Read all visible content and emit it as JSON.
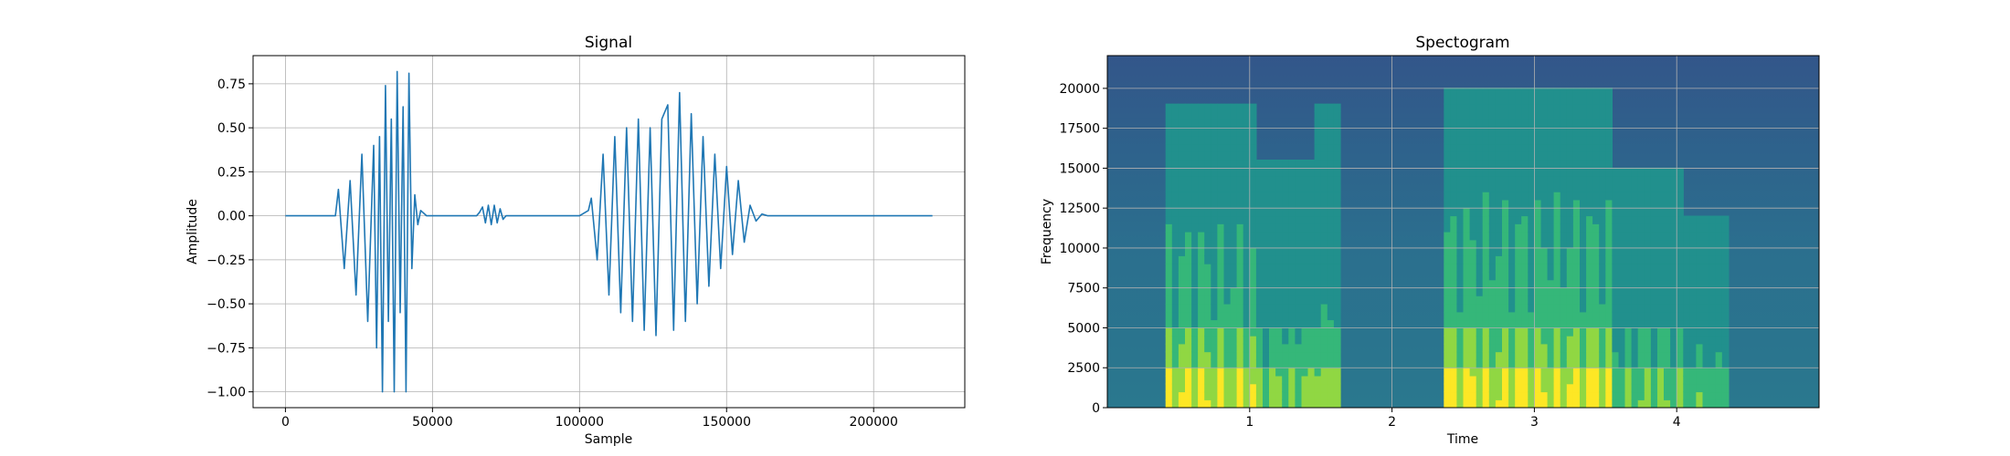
{
  "chart_data": [
    {
      "type": "line",
      "title": "Signal",
      "xlabel": "Sample",
      "ylabel": "Amplitude",
      "xlim": [
        -11000,
        231000
      ],
      "ylim": [
        -1.09,
        0.91
      ],
      "grid": true,
      "x_ticks": [
        0,
        50000,
        100000,
        150000,
        200000
      ],
      "x_tick_labels": [
        "0",
        "50000",
        "100000",
        "150000",
        "200000"
      ],
      "y_ticks": [
        -1.0,
        -0.75,
        -0.5,
        -0.25,
        0.0,
        0.25,
        0.5,
        0.75
      ],
      "y_tick_labels": [
        "−1.00",
        "−0.75",
        "−0.50",
        "−0.25",
        "0.00",
        "0.25",
        "0.50",
        "0.75"
      ],
      "color": "#1f77b4",
      "series": [
        {
          "x": [
            0,
            17000,
            18000,
            20000,
            22000,
            24000,
            26000,
            28000,
            30000,
            31000,
            32000,
            33000,
            34000,
            35000,
            36000,
            37000,
            38000,
            39000,
            40000,
            41000,
            42000,
            43000,
            44000,
            45000,
            46000,
            48000,
            65000,
            66000,
            67000,
            68000,
            69000,
            70000,
            71000,
            72000,
            73000,
            74000,
            75000,
            100000,
            103000,
            104000,
            106000,
            108000,
            110000,
            112000,
            114000,
            116000,
            118000,
            120000,
            122000,
            124000,
            126000,
            128000,
            130000,
            132000,
            134000,
            136000,
            138000,
            140000,
            142000,
            144000,
            146000,
            148000,
            150000,
            152000,
            154000,
            156000,
            158000,
            160000,
            162000,
            164000,
            200000,
            220000
          ],
          "y": [
            0.0,
            0.0,
            0.15,
            -0.3,
            0.2,
            -0.45,
            0.35,
            -0.6,
            0.4,
            -0.75,
            0.45,
            -1.0,
            0.74,
            -0.6,
            0.55,
            -1.0,
            0.82,
            -0.55,
            0.62,
            -1.0,
            0.81,
            -0.3,
            0.12,
            -0.05,
            0.03,
            0.0,
            0.0,
            0.02,
            0.05,
            -0.04,
            0.06,
            -0.05,
            0.06,
            -0.04,
            0.04,
            -0.02,
            0.0,
            0.0,
            0.03,
            0.1,
            -0.25,
            0.35,
            -0.45,
            0.45,
            -0.55,
            0.5,
            -0.6,
            0.55,
            -0.65,
            0.5,
            -0.68,
            0.55,
            0.63,
            -0.65,
            0.7,
            -0.6,
            0.58,
            -0.5,
            0.45,
            -0.4,
            0.35,
            -0.3,
            0.28,
            -0.22,
            0.2,
            -0.15,
            0.06,
            -0.03,
            0.01,
            0.0,
            0.0,
            0.0
          ]
        }
      ]
    },
    {
      "type": "heatmap",
      "title": "Spectogram",
      "xlabel": "Time",
      "ylabel": "Frequency",
      "xlim": [
        0,
        5.0
      ],
      "ylim": [
        0,
        22050
      ],
      "grid": true,
      "x_ticks": [
        1,
        2,
        3,
        4
      ],
      "x_tick_labels": [
        "1",
        "2",
        "3",
        "4"
      ],
      "y_ticks": [
        0,
        2500,
        5000,
        7500,
        10000,
        12500,
        15000,
        17500,
        20000
      ],
      "y_tick_labels": [
        "0",
        "2500",
        "5000",
        "7500",
        "10000",
        "12500",
        "15000",
        "17500",
        "20000"
      ],
      "colormap": [
        "#30678d",
        "#21908d",
        "#35b779",
        "#90d743",
        "#fde725"
      ],
      "energy_regions": [
        {
          "t_start": 0.4,
          "t_end": 1.05,
          "f_max": 19000,
          "level": 0.7
        },
        {
          "t_start": 1.05,
          "t_end": 1.45,
          "f_max": 15500,
          "level": 0.45
        },
        {
          "t_start": 1.45,
          "t_end": 1.65,
          "f_max": 19000,
          "level": 0.55
        },
        {
          "t_start": 2.35,
          "t_end": 3.55,
          "f_max": 20000,
          "level": 0.75
        },
        {
          "t_start": 3.55,
          "t_end": 4.05,
          "f_max": 15000,
          "level": 0.4
        },
        {
          "t_start": 4.05,
          "t_end": 4.35,
          "f_max": 12000,
          "level": 0.35
        }
      ]
    }
  ]
}
